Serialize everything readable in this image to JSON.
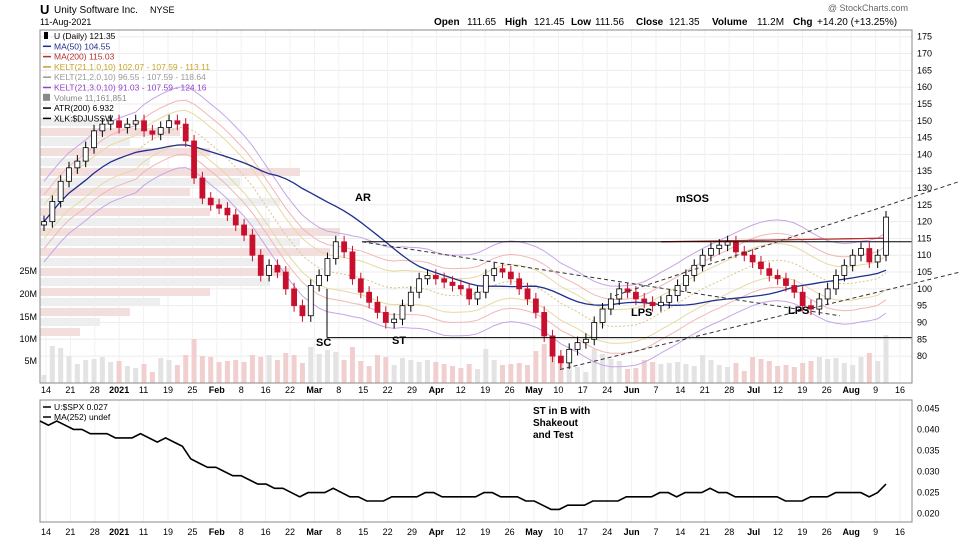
{
  "header": {
    "ticker": "U",
    "company": "Unity Software Inc.",
    "exchange": "NYSE",
    "date": "11-Aug-2021",
    "open_label": "Open",
    "open": "111.65",
    "high_label": "High",
    "high": "121.45",
    "low_label": "Low",
    "low": "111.56",
    "close_label": "Close",
    "close": "121.35",
    "volume_label": "Volume",
    "volume": "11.2M",
    "chg_label": "Chg",
    "chg": "+14.20 (+13.25%)",
    "watermark": "@ StockCharts.com"
  },
  "legend": [
    {
      "text": "U (Daily) 121.35",
      "color": "#000000",
      "marker": "candle"
    },
    {
      "text": "MA(50) 104.55",
      "color": "#1f2f8f",
      "marker": "line"
    },
    {
      "text": "MA(200) 115.03",
      "color": "#b5302f",
      "marker": "line"
    },
    {
      "text": "KELT(21,1.0,10) 102.07 - 107.59 - 113.11",
      "color": "#c9a227",
      "marker": "line"
    },
    {
      "text": "KELT(21,2.0,10) 96.55 - 107.59 - 118.64",
      "color": "#9a9a9a",
      "marker": "line"
    },
    {
      "text": "KELT(21,3.0,10) 91.03 - 107.59 - 124.16",
      "color": "#8e44c9",
      "marker": "line"
    },
    {
      "text": "Volume 11,161,851",
      "color": "#888888",
      "marker": "bars"
    },
    {
      "text": "ATR(200) 6.932",
      "color": "#000000",
      "marker": "line"
    },
    {
      "text": "XLK:$DJUSSW",
      "color": "#000000",
      "marker": "line"
    }
  ],
  "lower_legend": [
    {
      "text": "U:$SPX 0.027",
      "color": "#000000"
    },
    {
      "text": "MA(252) undef",
      "color": "#000000"
    }
  ],
  "annotations": {
    "ar": "AR",
    "sc": "SC",
    "st": "ST",
    "msos": "mSOS",
    "lps1": "LPS",
    "lps2": "LPS",
    "st_in_b": [
      "ST in B with",
      "Shakeout",
      "and Test"
    ]
  },
  "x_ticks": [
    {
      "label": "14",
      "bold": false
    },
    {
      "label": "21",
      "bold": false
    },
    {
      "label": "28",
      "bold": false
    },
    {
      "label": "2021",
      "bold": true
    },
    {
      "label": "11",
      "bold": false
    },
    {
      "label": "19",
      "bold": false
    },
    {
      "label": "25",
      "bold": false
    },
    {
      "label": "Feb",
      "bold": true
    },
    {
      "label": "8",
      "bold": false
    },
    {
      "label": "16",
      "bold": false
    },
    {
      "label": "22",
      "bold": false
    },
    {
      "label": "Mar",
      "bold": true
    },
    {
      "label": "8",
      "bold": false
    },
    {
      "label": "15",
      "bold": false
    },
    {
      "label": "22",
      "bold": false
    },
    {
      "label": "29",
      "bold": false
    },
    {
      "label": "Apr",
      "bold": true
    },
    {
      "label": "12",
      "bold": false
    },
    {
      "label": "19",
      "bold": false
    },
    {
      "label": "26",
      "bold": false
    },
    {
      "label": "May",
      "bold": true
    },
    {
      "label": "10",
      "bold": false
    },
    {
      "label": "17",
      "bold": false
    },
    {
      "label": "24",
      "bold": false
    },
    {
      "label": "Jun",
      "bold": true
    },
    {
      "label": "7",
      "bold": false
    },
    {
      "label": "14",
      "bold": false
    },
    {
      "label": "21",
      "bold": false
    },
    {
      "label": "28",
      "bold": false
    },
    {
      "label": "Jul",
      "bold": true
    },
    {
      "label": "12",
      "bold": false
    },
    {
      "label": "19",
      "bold": false
    },
    {
      "label": "26",
      "bold": false
    },
    {
      "label": "Aug",
      "bold": true
    },
    {
      "label": "9",
      "bold": false
    },
    {
      "label": "16",
      "bold": false
    }
  ],
  "chart_data": [
    {
      "type": "candlestick",
      "y_ticks": [
        80,
        85,
        90,
        95,
        100,
        105,
        110,
        115,
        120,
        125,
        130,
        135,
        140,
        145,
        150,
        155,
        160,
        165,
        170,
        175
      ],
      "ylim": [
        72,
        177
      ],
      "grid": true,
      "volume_ticks": [
        "5M",
        "10M",
        "15M",
        "20M",
        "25M"
      ],
      "ohlc_close": [
        120,
        126,
        132,
        136,
        138,
        142,
        147,
        149,
        150,
        148,
        149,
        150,
        147,
        146,
        148,
        150,
        149,
        144,
        133,
        127,
        125,
        124,
        122,
        119,
        116,
        110,
        104,
        107,
        105,
        100,
        95,
        92,
        101,
        104,
        109,
        114,
        111,
        103,
        99,
        96,
        93,
        90,
        91,
        95,
        99,
        103,
        104,
        103,
        102,
        101,
        100,
        97,
        99,
        104,
        106,
        105,
        103,
        100,
        97,
        93,
        86,
        80,
        78,
        82,
        84,
        85,
        90,
        94,
        97,
        100,
        99,
        97,
        96,
        95,
        96,
        98,
        101,
        104,
        107,
        110,
        112,
        113,
        114,
        111,
        110,
        108,
        106,
        104,
        103,
        101,
        99,
        95,
        94,
        97,
        100,
        104,
        107,
        110,
        112,
        108,
        110,
        121.35
      ]
    },
    {
      "type": "line",
      "series": [
        {
          "name": "U:$SPX",
          "values": [
            0.042,
            0.041,
            0.042,
            0.041,
            0.04,
            0.04,
            0.039,
            0.039,
            0.039,
            0.038,
            0.038,
            0.038,
            0.039,
            0.038,
            0.037,
            0.038,
            0.037,
            0.036,
            0.033,
            0.032,
            0.031,
            0.031,
            0.03,
            0.029,
            0.029,
            0.028,
            0.027,
            0.027,
            0.026,
            0.026,
            0.025,
            0.024,
            0.025,
            0.025,
            0.025,
            0.026,
            0.025,
            0.024,
            0.024,
            0.023,
            0.023,
            0.023,
            0.024,
            0.024,
            0.024,
            0.024,
            0.025,
            0.025,
            0.024,
            0.024,
            0.024,
            0.024,
            0.024,
            0.025,
            0.025,
            0.024,
            0.024,
            0.024,
            0.023,
            0.023,
            0.022,
            0.021,
            0.021,
            0.022,
            0.022,
            0.022,
            0.023,
            0.023,
            0.023,
            0.023,
            0.024,
            0.024,
            0.024,
            0.024,
            0.025,
            0.025,
            0.024,
            0.025,
            0.025,
            0.025,
            0.026,
            0.025,
            0.025,
            0.024,
            0.024,
            0.024,
            0.024,
            0.024,
            0.024,
            0.023,
            0.023,
            0.023,
            0.024,
            0.024,
            0.024,
            0.025,
            0.025,
            0.025,
            0.025,
            0.024,
            0.025,
            0.027
          ]
        }
      ],
      "y_ticks": [
        "0.020",
        "0.025",
        "0.030",
        "0.035",
        "0.040",
        "0.045"
      ],
      "ylim": [
        0.018,
        0.047
      ]
    }
  ]
}
